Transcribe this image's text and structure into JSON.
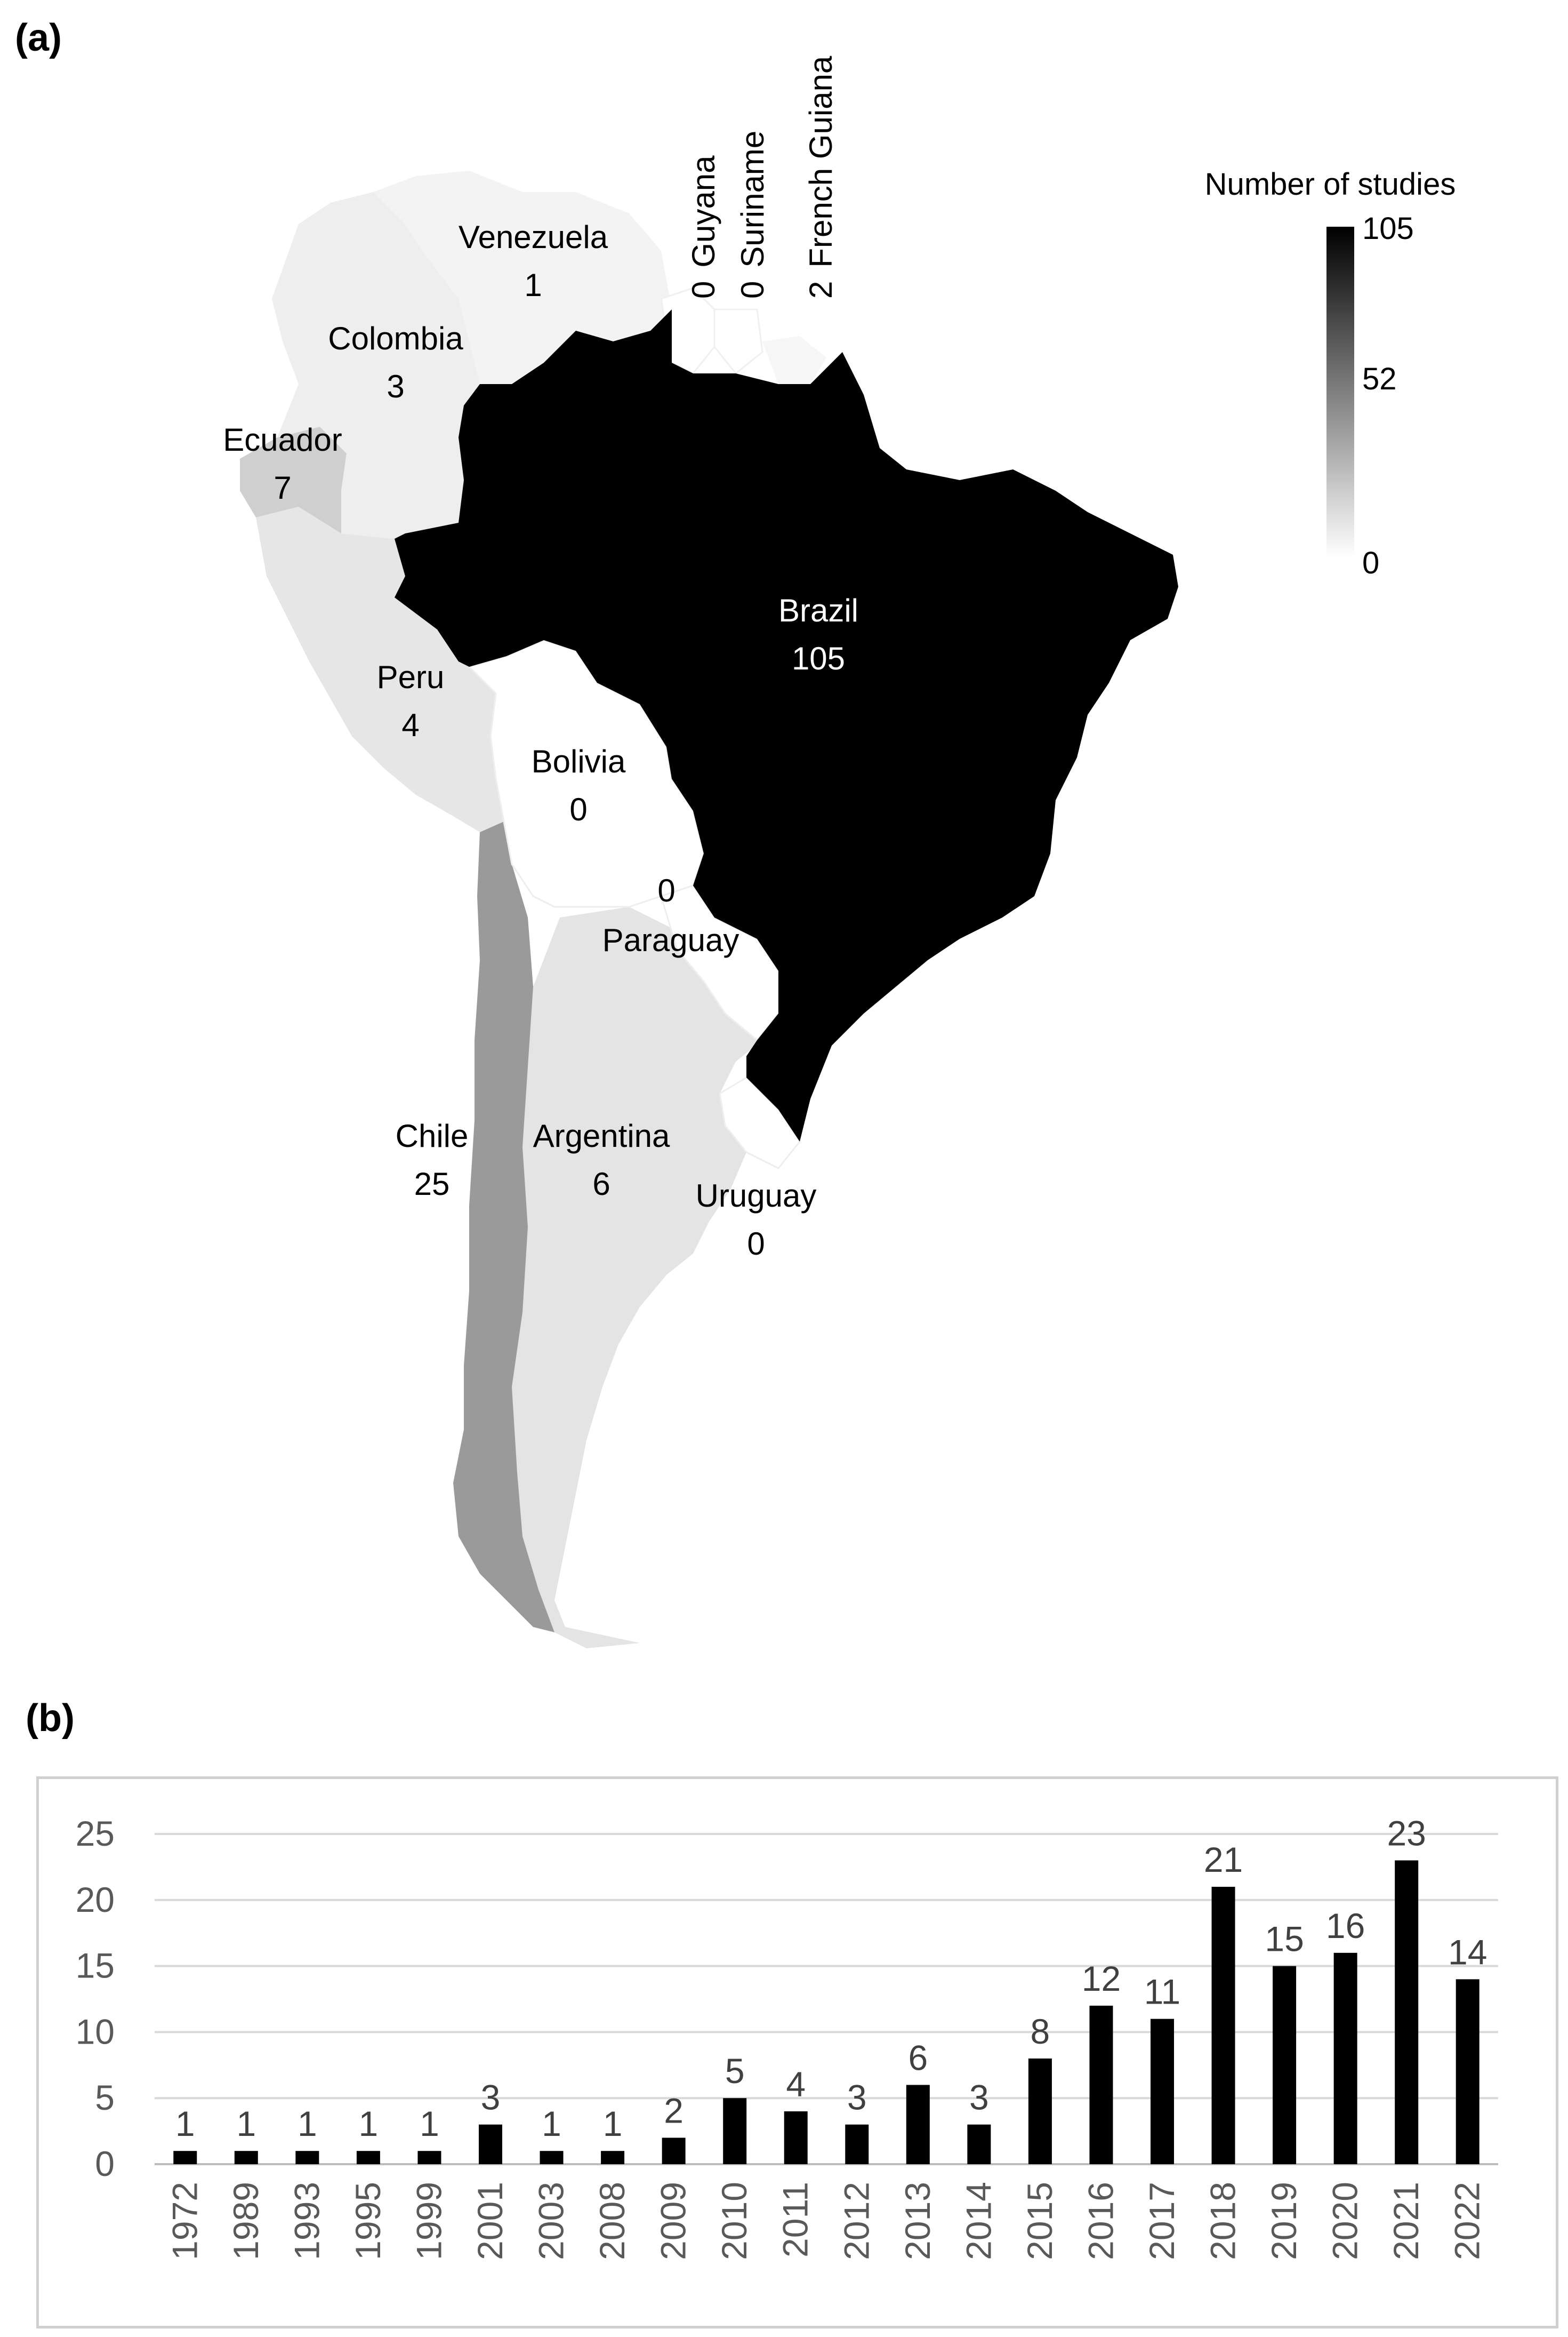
{
  "panel_a_label": "(a)",
  "panel_b_label": "(b)",
  "legend": {
    "title": "Number of studies",
    "ticks": [
      "105",
      "52",
      "0"
    ],
    "min": 0,
    "max": 105,
    "color_low": "#ffffff",
    "color_high": "#000000"
  },
  "countries": [
    {
      "name": "Venezuela",
      "value": "1"
    },
    {
      "name": "Colombia",
      "value": "3"
    },
    {
      "name": "Ecuador",
      "value": "7"
    },
    {
      "name": "Peru",
      "value": "4"
    },
    {
      "name": "Bolivia",
      "value": "0"
    },
    {
      "name": "Paraguay",
      "value": "0"
    },
    {
      "name": "Brazil",
      "value": "105"
    },
    {
      "name": "Chile",
      "value": "25"
    },
    {
      "name": "Argentina",
      "value": "6"
    },
    {
      "name": "Uruguay",
      "value": "0"
    },
    {
      "name": "Guyana",
      "value": "0"
    },
    {
      "name": "Suriname",
      "value": "0"
    },
    {
      "name": "French Guiana",
      "value": "2"
    }
  ],
  "chart_data": {
    "type": "bar",
    "categories": [
      "1972",
      "1989",
      "1993",
      "1995",
      "1999",
      "2001",
      "2003",
      "2008",
      "2009",
      "2010",
      "2011",
      "2012",
      "2013",
      "2014",
      "2015",
      "2016",
      "2017",
      "2018",
      "2019",
      "2020",
      "2021",
      "2022"
    ],
    "values": [
      1,
      1,
      1,
      1,
      1,
      3,
      1,
      1,
      2,
      5,
      4,
      3,
      6,
      3,
      8,
      12,
      11,
      21,
      15,
      16,
      23,
      14
    ],
    "yticks": [
      "0",
      "5",
      "10",
      "15",
      "20",
      "25"
    ],
    "ylim": [
      0,
      25
    ],
    "grid": true,
    "bar_color": "#000000",
    "title": "",
    "xlabel": "",
    "ylabel": ""
  }
}
